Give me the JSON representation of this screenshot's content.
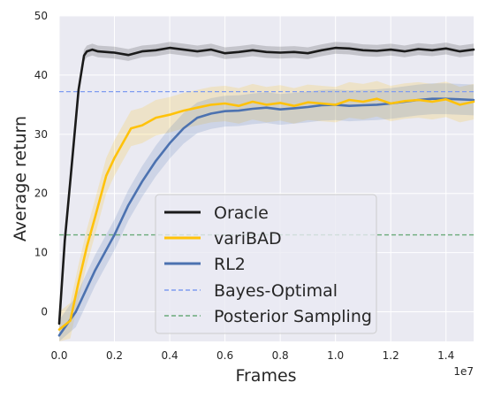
{
  "chart_data": {
    "type": "line",
    "xlabel": "Frames",
    "ylabel": "Average return",
    "x_offset_label": "1e7",
    "x_multiplier": 10000000,
    "xlim": [
      0,
      1.5
    ],
    "ylim": [
      -5,
      50
    ],
    "x_ticks": [
      0.0,
      0.2,
      0.4,
      0.6,
      0.8,
      1.0,
      1.2,
      1.4
    ],
    "x_tick_labels": [
      "0.0",
      "0.2",
      "0.4",
      "0.6",
      "0.8",
      "1.0",
      "1.2",
      "1.4"
    ],
    "y_ticks": [
      0,
      10,
      20,
      30,
      40,
      50
    ],
    "y_tick_labels": [
      "0",
      "10",
      "20",
      "30",
      "40",
      "50"
    ],
    "grid": true,
    "legend_position": "lower-right",
    "colors": {
      "background": "#eaeaf2",
      "grid": "#ffffff",
      "oracle": "#1a1a1a",
      "varibad": "#ffc20a",
      "rl2": "#4c72b0",
      "bayes": "#7f9cf0",
      "posterior": "#6aaa7a"
    },
    "series": [
      {
        "name": "Oracle",
        "key": "oracle",
        "x": [
          0.0,
          0.02,
          0.04,
          0.07,
          0.09,
          0.1,
          0.12,
          0.14,
          0.17,
          0.2,
          0.25,
          0.3,
          0.35,
          0.4,
          0.45,
          0.5,
          0.55,
          0.6,
          0.65,
          0.7,
          0.75,
          0.8,
          0.85,
          0.9,
          0.95,
          1.0,
          1.05,
          1.1,
          1.15,
          1.2,
          1.25,
          1.3,
          1.35,
          1.4,
          1.45,
          1.5
        ],
        "y": [
          -2.0,
          12.0,
          22.0,
          37.5,
          43.3,
          44.0,
          44.3,
          44.0,
          43.9,
          43.8,
          43.4,
          44.0,
          44.2,
          44.6,
          44.3,
          44.0,
          44.3,
          43.7,
          43.9,
          44.2,
          43.9,
          43.8,
          43.9,
          43.7,
          44.2,
          44.6,
          44.5,
          44.2,
          44.1,
          44.3,
          44.0,
          44.4,
          44.2,
          44.5,
          44.0,
          44.3
        ],
        "spread": 1.0
      },
      {
        "name": "variBAD",
        "key": "varibad",
        "x": [
          0.0,
          0.04,
          0.07,
          0.1,
          0.13,
          0.17,
          0.2,
          0.23,
          0.26,
          0.3,
          0.35,
          0.4,
          0.45,
          0.5,
          0.55,
          0.6,
          0.65,
          0.7,
          0.75,
          0.8,
          0.85,
          0.9,
          0.95,
          1.0,
          1.05,
          1.1,
          1.15,
          1.2,
          1.25,
          1.3,
          1.35,
          1.4,
          1.45,
          1.5
        ],
        "y": [
          -3.0,
          -1.5,
          5.0,
          11.0,
          16.0,
          23.0,
          26.0,
          28.5,
          31.0,
          31.5,
          32.8,
          33.3,
          34.0,
          34.5,
          35.0,
          35.2,
          34.8,
          35.5,
          35.0,
          35.3,
          34.8,
          35.4,
          35.2,
          35.0,
          35.8,
          35.5,
          36.0,
          35.2,
          35.6,
          35.8,
          35.5,
          35.9,
          35.0,
          35.5
        ],
        "spread": 3.0
      },
      {
        "name": "RL2",
        "key": "rl2",
        "x": [
          0.0,
          0.06,
          0.13,
          0.2,
          0.25,
          0.3,
          0.35,
          0.4,
          0.45,
          0.5,
          0.55,
          0.6,
          0.65,
          0.7,
          0.75,
          0.8,
          0.85,
          0.9,
          0.95,
          1.0,
          1.05,
          1.1,
          1.15,
          1.2,
          1.25,
          1.3,
          1.35,
          1.4,
          1.45,
          1.5
        ],
        "y": [
          -4.0,
          0.0,
          7.0,
          13.0,
          18.0,
          22.0,
          25.5,
          28.5,
          31.0,
          32.8,
          33.5,
          33.9,
          34.0,
          34.3,
          34.5,
          34.2,
          34.4,
          34.6,
          34.9,
          35.0,
          34.8,
          34.9,
          35.0,
          35.2,
          35.5,
          35.8,
          36.0,
          36.0,
          35.9,
          35.8
        ],
        "spread": 2.6
      }
    ],
    "reference_lines": [
      {
        "name": "Bayes-Optimal",
        "key": "bayes",
        "y": 37.2
      },
      {
        "name": "Posterior Sampling",
        "key": "posterior",
        "y": 13.0
      }
    ],
    "legend": [
      "Oracle",
      "variBAD",
      "RL2",
      "Bayes-Optimal",
      "Posterior Sampling"
    ]
  }
}
